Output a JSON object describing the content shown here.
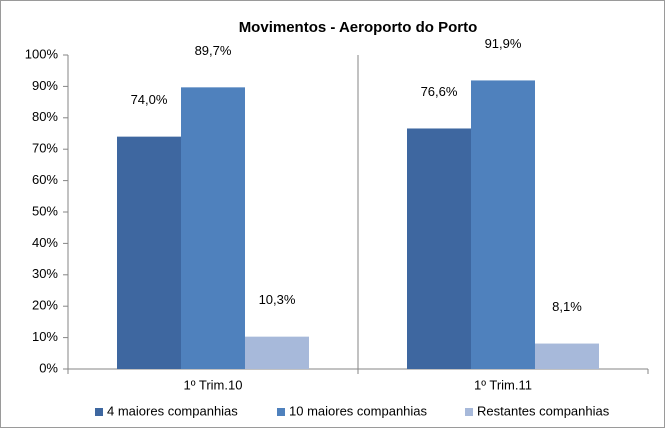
{
  "chart_data": {
    "type": "bar",
    "title": "Movimentos - Aeroporto do Porto",
    "categories": [
      "1º Trim.10",
      "1º Trim.11"
    ],
    "series": [
      {
        "name": "4 maiores companhias",
        "color": "#3e67a0",
        "values": [
          74.0,
          76.6
        ],
        "value_labels": [
          "74,0%",
          "76,6%"
        ]
      },
      {
        "name": "10 maiores companhias",
        "color": "#4f81bd",
        "values": [
          89.7,
          91.9
        ],
        "value_labels": [
          "89,7%",
          "91,9%"
        ]
      },
      {
        "name": "Restantes companhias",
        "color": "#a7b9da",
        "values": [
          10.3,
          8.1
        ],
        "value_labels": [
          "10,3%",
          "8,1%"
        ]
      }
    ],
    "ylim": [
      0,
      100
    ],
    "yticks": [
      {
        "value": 0,
        "label": "0%"
      },
      {
        "value": 10,
        "label": "10%"
      },
      {
        "value": 20,
        "label": "20%"
      },
      {
        "value": 30,
        "label": "30%"
      },
      {
        "value": 40,
        "label": "40%"
      },
      {
        "value": 50,
        "label": "50%"
      },
      {
        "value": 60,
        "label": "60%"
      },
      {
        "value": 70,
        "label": "70%"
      },
      {
        "value": 80,
        "label": "80%"
      },
      {
        "value": 90,
        "label": "90%"
      },
      {
        "value": 100,
        "label": "100%"
      }
    ],
    "grid": false,
    "legend": "bottom"
  }
}
